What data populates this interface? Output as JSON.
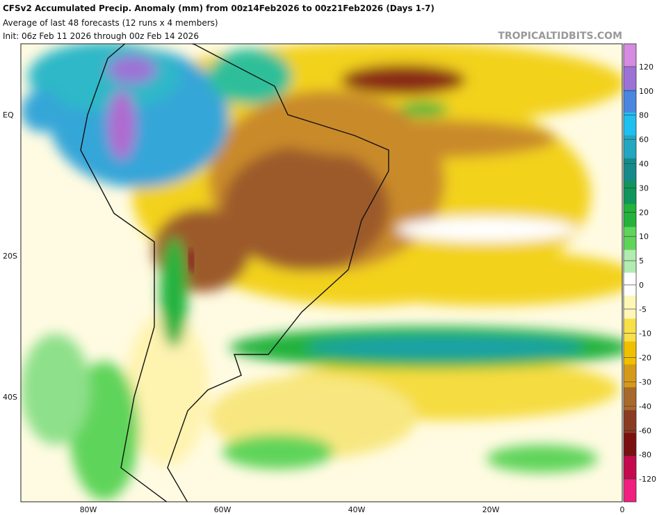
{
  "header": {
    "title": "CFSv2 Accumulated Precip. Anomaly (mm) from 00z14Feb2026 to 00z21Feb2026 (Days 1-7)",
    "subtitle": "Average of last 48 forecasts (12 runs x 4 members)",
    "init": "Init: 06z Feb 11 2026 through 00z Feb 14 2026",
    "watermark": "TROPICALTIDBITS.COM"
  },
  "map": {
    "lat_labels": [
      "EQ",
      "20S",
      "40S"
    ],
    "lon_labels": [
      "80W",
      "60W",
      "40W",
      "20W",
      "0"
    ]
  },
  "colorbar": {
    "labels": [
      "120",
      "100",
      "80",
      "60",
      "40",
      "30",
      "20",
      "10",
      "5",
      "0",
      "-5",
      "-10",
      "-20",
      "-30",
      "-40",
      "-60",
      "-80",
      "-120"
    ],
    "colors": [
      "#d58be0",
      "#9d72d6",
      "#4b86e0",
      "#1fbfef",
      "#23a6c0",
      "#168a8a",
      "#10955a",
      "#23b23c",
      "#5fd45a",
      "#b2ecb0",
      "#ffffff",
      "#fff7b8",
      "#f7e04a",
      "#f0c000",
      "#d69a1a",
      "#a8692c",
      "#8a3b22",
      "#7a1010",
      "#c40a4c",
      "#f0207e"
    ]
  }
}
